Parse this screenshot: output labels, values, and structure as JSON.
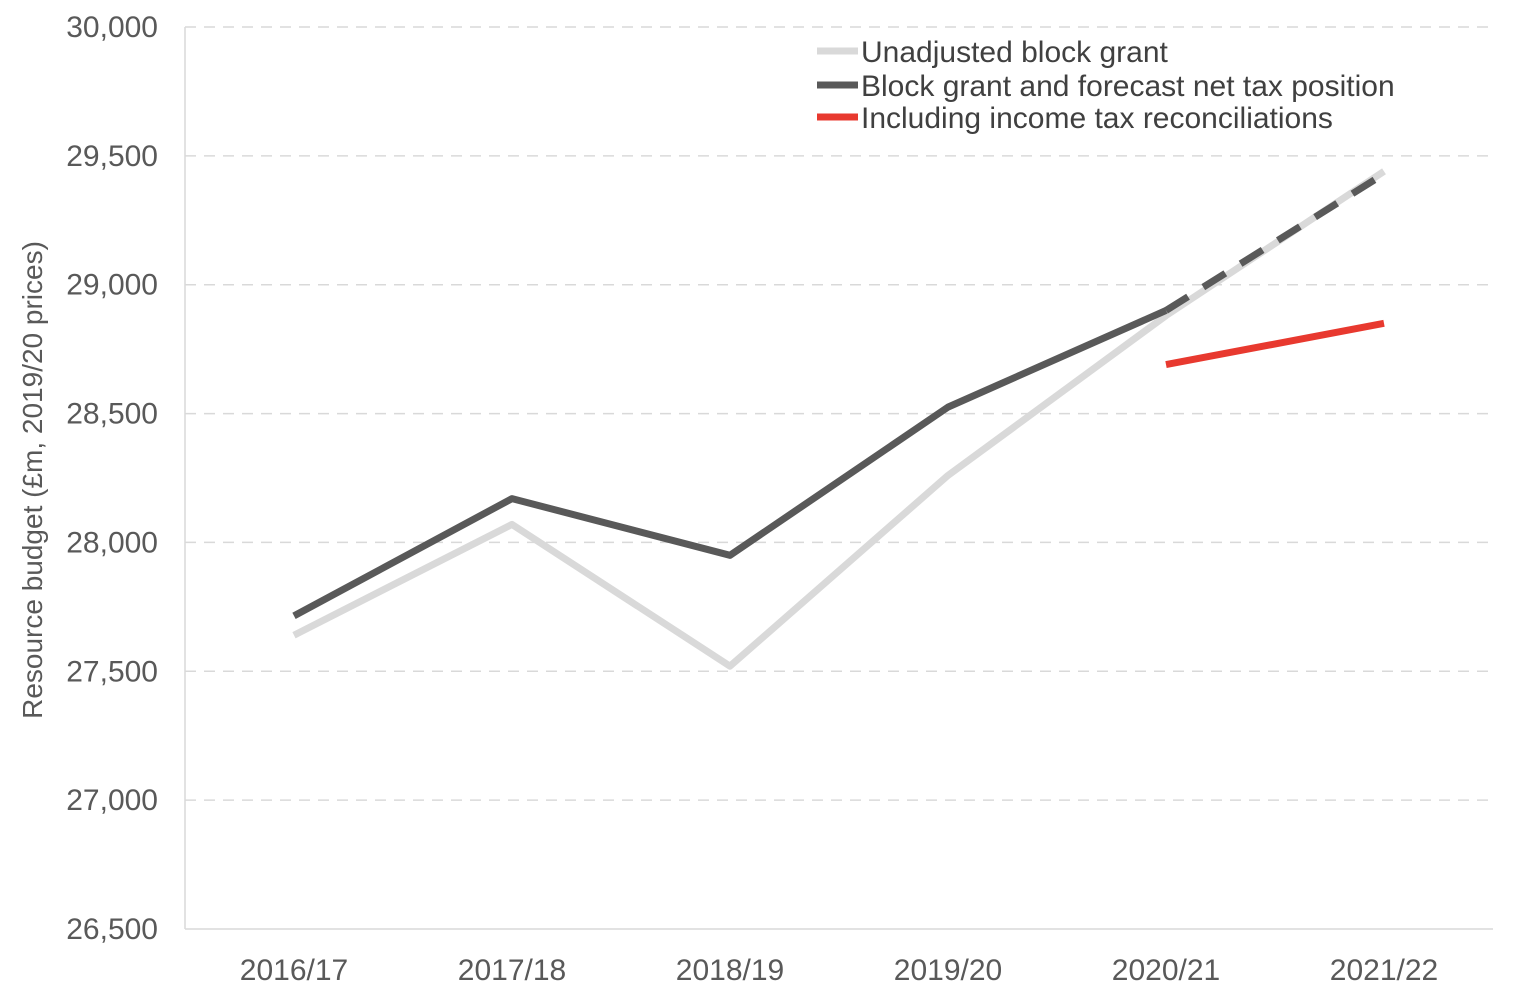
{
  "chart_data": {
    "type": "line",
    "categories": [
      "2016/17",
      "2017/18",
      "2018/19",
      "2019/20",
      "2020/21",
      "2021/22"
    ],
    "ylabel": "Resource budget (£m, 2019/20 prices)",
    "ylim": [
      26500,
      30000
    ],
    "yticks": [
      26500,
      27000,
      27500,
      28000,
      28500,
      29000,
      29500,
      30000
    ],
    "ytick_labels": [
      "26,500",
      "27,000",
      "27,500",
      "28,000",
      "28,500",
      "29,000",
      "29,500",
      "30,000"
    ],
    "grid": "horizontal dashed",
    "legend_position": "top-right",
    "series": [
      {
        "name": "Unadjusted block grant",
        "color": "#d9d9d9",
        "values": [
          27640,
          28070,
          27520,
          28260,
          28880,
          29440
        ],
        "dashed_from_index": null
      },
      {
        "name": "Block grant and forecast net tax position",
        "color": "#595959",
        "values": [
          27715,
          28170,
          27950,
          28525,
          28900,
          29430
        ],
        "dashed_from_index": 4
      },
      {
        "name": "Including income tax reconciliations",
        "color": "#e8392f",
        "values": [
          null,
          null,
          null,
          null,
          28690,
          28850
        ],
        "dashed_from_index": null
      }
    ]
  }
}
